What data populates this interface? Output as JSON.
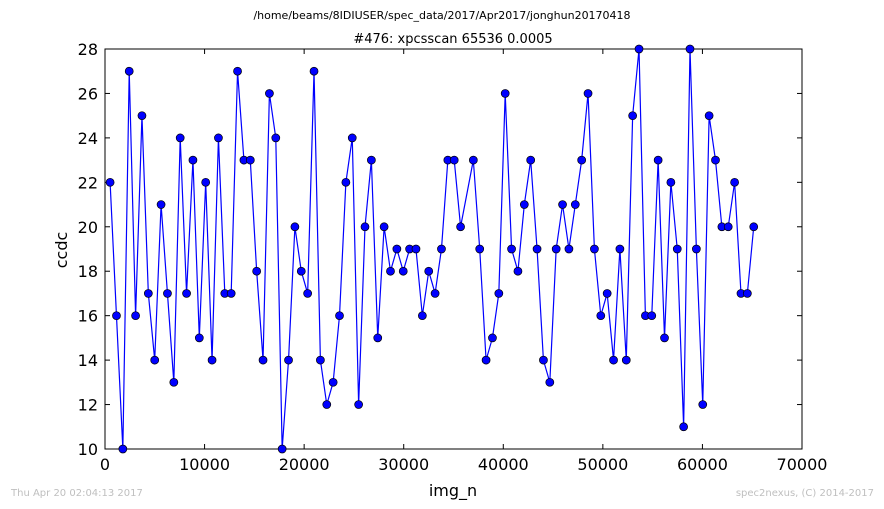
{
  "header": {
    "path": "/home/beams/8IDIUSER/spec_data/2017/Apr2017/jonghun20170418"
  },
  "footer": {
    "left": "Thu Apr 20 02:04:13 2017",
    "right": "spec2nexus, (C) 2014-2017"
  },
  "colors": {
    "line": "#0000ff",
    "marker_fill": "#0000ff",
    "marker_edge": "#000000",
    "axes": "#000000",
    "footer_text": "#bfbfbf"
  },
  "chart_data": {
    "type": "line",
    "title": "#476: xpcsscan 65536 0.0005",
    "xlabel": "img_n",
    "ylabel": "ccdc",
    "xlim": [
      0,
      70000
    ],
    "ylim": [
      10,
      28
    ],
    "grid": false,
    "markers": "circle",
    "xticks": [
      "0",
      "10000",
      "20000",
      "30000",
      "40000",
      "50000",
      "60000",
      "70000"
    ],
    "yticks": [
      "10",
      "12",
      "14",
      "16",
      "18",
      "20",
      "22",
      "24",
      "26",
      "28"
    ],
    "series": [
      {
        "x": [
          512,
          1152,
          1792,
          2432,
          3072,
          3712,
          4352,
          4992,
          5632,
          6272,
          6912,
          7552,
          8192,
          8832,
          9472,
          10112,
          10752,
          11392,
          12032,
          12672,
          13312,
          13952,
          14592,
          15232,
          15872,
          16512,
          17152,
          17792,
          18432,
          19072,
          19712,
          20352,
          20992,
          21632,
          22272,
          22912,
          23552,
          24192,
          24832,
          25472,
          26112,
          26752,
          27392,
          28032,
          28672,
          29312,
          29952,
          30592,
          31232,
          31872,
          32512,
          33152,
          33792,
          34432,
          35072,
          35712,
          36992,
          37632,
          38272,
          38912,
          39552,
          40192,
          40832,
          41472,
          42112,
          42752,
          43392,
          44032,
          44672,
          45312,
          45952,
          46592,
          47232,
          47872,
          48512,
          49152,
          49792,
          50432,
          51072,
          51712,
          52352,
          52992,
          53632,
          54272,
          54912,
          55552,
          56192,
          56832,
          57472,
          58112,
          58752,
          59392,
          60032,
          60672,
          61312,
          61952,
          62592,
          63232,
          63872,
          64512,
          65152
        ],
        "y": [
          22,
          16,
          10,
          27,
          16,
          25,
          17,
          14,
          21,
          17,
          13,
          24,
          17,
          23,
          15,
          22,
          14,
          24,
          17,
          17,
          27,
          23,
          23,
          18,
          14,
          26,
          24,
          10,
          14,
          20,
          18,
          17,
          27,
          14,
          12,
          13,
          16,
          22,
          24,
          12,
          20,
          23,
          15,
          20,
          18,
          19,
          18,
          19,
          19,
          16,
          18,
          17,
          19,
          23,
          23,
          20,
          23,
          19,
          14,
          15,
          17,
          26,
          19,
          18,
          21,
          23,
          19,
          14,
          13,
          19,
          21,
          19,
          21,
          23,
          26,
          19,
          16,
          17,
          14,
          19,
          14,
          25,
          28,
          16,
          16,
          23,
          15,
          22,
          19,
          11,
          28,
          19,
          12,
          25,
          23,
          20,
          20,
          22,
          17,
          17,
          20
        ]
      }
    ]
  }
}
